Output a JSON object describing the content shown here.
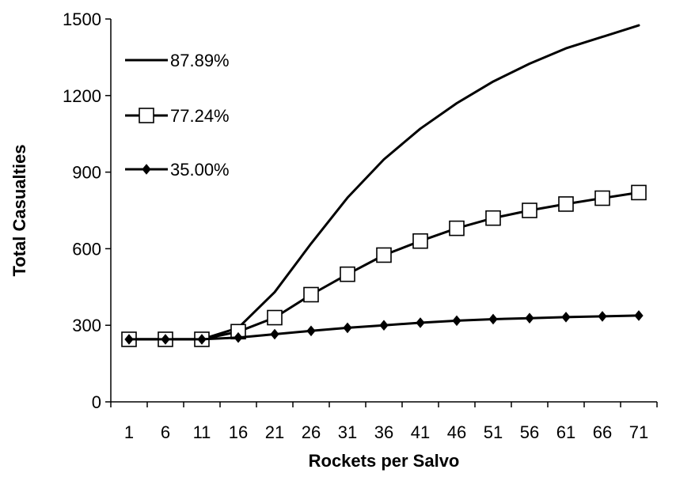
{
  "chart_data": {
    "type": "line",
    "xlabel": "Rockets per Salvo",
    "ylabel": "Total Casualties",
    "categories": [
      "1",
      "6",
      "11",
      "16",
      "21",
      "26",
      "31",
      "36",
      "41",
      "46",
      "51",
      "56",
      "61",
      "66",
      "71"
    ],
    "ylim": [
      0,
      1500
    ],
    "yticks": [
      0,
      300,
      600,
      900,
      1200,
      1500
    ],
    "grid": false,
    "legend_position": "top-left",
    "series": [
      {
        "name": "87.89%",
        "marker": "none",
        "values": [
          245,
          245,
          245,
          290,
          430,
          620,
          800,
          950,
          1070,
          1170,
          1255,
          1325,
          1385,
          1430,
          1475
        ]
      },
      {
        "name": "77.24%",
        "marker": "square",
        "values": [
          245,
          245,
          245,
          275,
          330,
          420,
          500,
          575,
          630,
          680,
          720,
          750,
          775,
          798,
          820
        ]
      },
      {
        "name": "35.00%",
        "marker": "diamond",
        "values": [
          245,
          245,
          245,
          252,
          265,
          278,
          290,
          300,
          310,
          318,
          324,
          328,
          332,
          335,
          338
        ]
      }
    ]
  }
}
